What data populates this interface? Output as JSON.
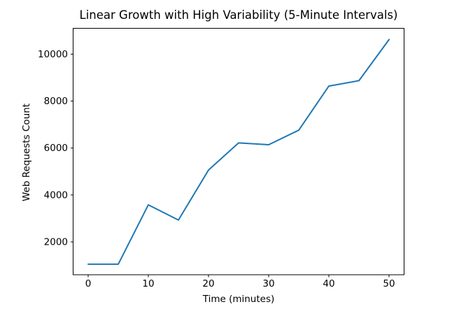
{
  "chart_data": {
    "type": "line",
    "title": "Linear Growth with High Variability (5-Minute Intervals)",
    "xlabel": "Time (minutes)",
    "ylabel": "Web Requests Count",
    "x": [
      0,
      5,
      10,
      15,
      20,
      25,
      30,
      35,
      40,
      45,
      50
    ],
    "series": [
      {
        "name": "web-requests",
        "values": [
          1050,
          1050,
          3580,
          2930,
          5060,
          6220,
          6140,
          6760,
          8640,
          8870,
          10620
        ]
      }
    ],
    "xticks": [
      0,
      10,
      20,
      30,
      40,
      50
    ],
    "yticks": [
      2000,
      4000,
      6000,
      8000,
      10000
    ],
    "xlim": [
      -2.5,
      52.5
    ],
    "ylim": [
      600,
      11100
    ],
    "grid": false,
    "legend": "none",
    "line_color": "#1f77b4",
    "axis_color": "#000000",
    "background_color": "#ffffff"
  }
}
